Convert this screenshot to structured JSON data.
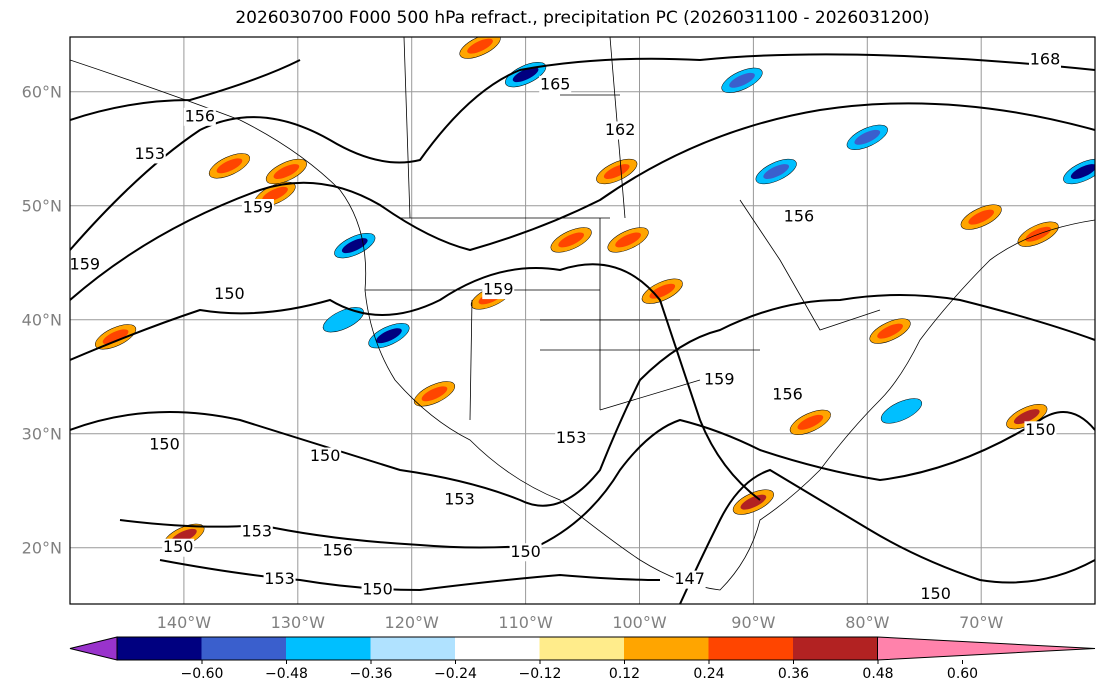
{
  "title": "2026030700 F000 500 hPa refract., precipitation PC (2026031100 - 2026031200)",
  "chart_data": {
    "type": "map",
    "title": "2026030700 F000 500 hPa refract., precipitation PC (2026031100 - 2026031200)",
    "extent": {
      "lon": [
        -150,
        -60
      ],
      "lat": [
        15,
        65
      ]
    },
    "lat_ticks": [
      {
        "value": 60,
        "label": "60°N"
      },
      {
        "value": 50,
        "label": "50°N"
      },
      {
        "value": 40,
        "label": "40°N"
      },
      {
        "value": 30,
        "label": "30°N"
      },
      {
        "value": 20,
        "label": "20°N"
      }
    ],
    "lon_ticks": [
      {
        "value": -140,
        "label": "140°W"
      },
      {
        "value": -130,
        "label": "130°W"
      },
      {
        "value": -120,
        "label": "120°W"
      },
      {
        "value": -110,
        "label": "110°W"
      },
      {
        "value": -100,
        "label": "100°W"
      },
      {
        "value": -90,
        "label": "90°W"
      },
      {
        "value": -80,
        "label": "80°W"
      },
      {
        "value": -70,
        "label": "70°W"
      }
    ],
    "grid": true,
    "contour_labels": [
      {
        "text": "156",
        "lon": -138.6,
        "lat": 57.8
      },
      {
        "text": "153",
        "lon": -143,
        "lat": 54.5
      },
      {
        "text": "159",
        "lon": -133.5,
        "lat": 49.8
      },
      {
        "text": "159",
        "lon": -148.7,
        "lat": 44.8
      },
      {
        "text": "150",
        "lon": -136,
        "lat": 42.2
      },
      {
        "text": "165",
        "lon": -107.4,
        "lat": 60.6
      },
      {
        "text": "162",
        "lon": -101.7,
        "lat": 56.6
      },
      {
        "text": "168",
        "lon": -64.4,
        "lat": 62.8
      },
      {
        "text": "150",
        "lon": -141.7,
        "lat": 29
      },
      {
        "text": "150",
        "lon": -127.6,
        "lat": 28
      },
      {
        "text": "153",
        "lon": -115.8,
        "lat": 24.2
      },
      {
        "text": "153",
        "lon": -133.6,
        "lat": 21.4
      },
      {
        "text": "150",
        "lon": -140.5,
        "lat": 20
      },
      {
        "text": "156",
        "lon": -126.5,
        "lat": 19.7
      },
      {
        "text": "153",
        "lon": -131.6,
        "lat": 17.2
      },
      {
        "text": "150",
        "lon": -123,
        "lat": 16.3
      },
      {
        "text": "150",
        "lon": -110,
        "lat": 19.6
      },
      {
        "text": "153",
        "lon": -106,
        "lat": 29.6
      },
      {
        "text": "159",
        "lon": -93,
        "lat": 34.7
      },
      {
        "text": "156",
        "lon": -87,
        "lat": 33.4
      },
      {
        "text": "156",
        "lon": -86,
        "lat": 49
      },
      {
        "text": "150",
        "lon": -64.8,
        "lat": 30.3
      },
      {
        "text": "159",
        "lon": -112.4,
        "lat": 42.6
      },
      {
        "text": "147",
        "lon": -95.6,
        "lat": 17.2
      },
      {
        "text": "150",
        "lon": -74,
        "lat": 15.9
      }
    ],
    "precip_areas": [
      {
        "lon": -132,
        "lat": 51,
        "value": 0.4
      },
      {
        "lon": -136,
        "lat": 53.5,
        "value": 0.45
      },
      {
        "lon": -131,
        "lat": 53,
        "value": 0.4
      },
      {
        "lon": -146,
        "lat": 38.5,
        "value": 0.45
      },
      {
        "lon": -122,
        "lat": 38.6,
        "value": -0.6
      },
      {
        "lon": -118,
        "lat": 33.5,
        "value": 0.45
      },
      {
        "lon": -113,
        "lat": 42,
        "value": 0.4
      },
      {
        "lon": -102,
        "lat": 53,
        "value": 0.4
      },
      {
        "lon": -101,
        "lat": 47,
        "value": 0.4
      },
      {
        "lon": -106,
        "lat": 47,
        "value": 0.4
      },
      {
        "lon": -98,
        "lat": 42.5,
        "value": 0.4
      },
      {
        "lon": -88,
        "lat": 53,
        "value": -0.4
      },
      {
        "lon": -80,
        "lat": 56,
        "value": -0.4
      },
      {
        "lon": -70,
        "lat": 49,
        "value": 0.45
      },
      {
        "lon": -65,
        "lat": 47.5,
        "value": 0.45
      },
      {
        "lon": -66,
        "lat": 31.5,
        "value": 0.5
      },
      {
        "lon": -85,
        "lat": 31,
        "value": 0.45
      },
      {
        "lon": -78,
        "lat": 39,
        "value": 0.4
      },
      {
        "lon": -90,
        "lat": 24,
        "value": 0.5
      },
      {
        "lon": -140,
        "lat": 21,
        "value": 0.5
      },
      {
        "lon": -110,
        "lat": 61.5,
        "value": -0.5
      },
      {
        "lon": -91,
        "lat": 61,
        "value": -0.4
      },
      {
        "lon": -114,
        "lat": 64,
        "value": 0.4
      },
      {
        "lon": -77,
        "lat": 32,
        "value": -0.36
      },
      {
        "lon": -125,
        "lat": 46.5,
        "value": -0.5
      },
      {
        "lon": -61,
        "lat": 53,
        "value": -0.5
      },
      {
        "lon": -126,
        "lat": 40,
        "value": -0.36
      }
    ]
  },
  "colorbar": {
    "colors": [
      "#9933cc",
      "#000080",
      "#3a5fcd",
      "#00bfff",
      "#b0e2ff",
      "#ffffff",
      "#ffec8b",
      "#ffa500",
      "#ff4500",
      "#b22222",
      "#ff82ab"
    ],
    "tick_labels": [
      "−0.60",
      "−0.48",
      "−0.36",
      "−0.24",
      "−0.12",
      "0.12",
      "0.24",
      "0.36",
      "0.48",
      "0.60"
    ]
  }
}
